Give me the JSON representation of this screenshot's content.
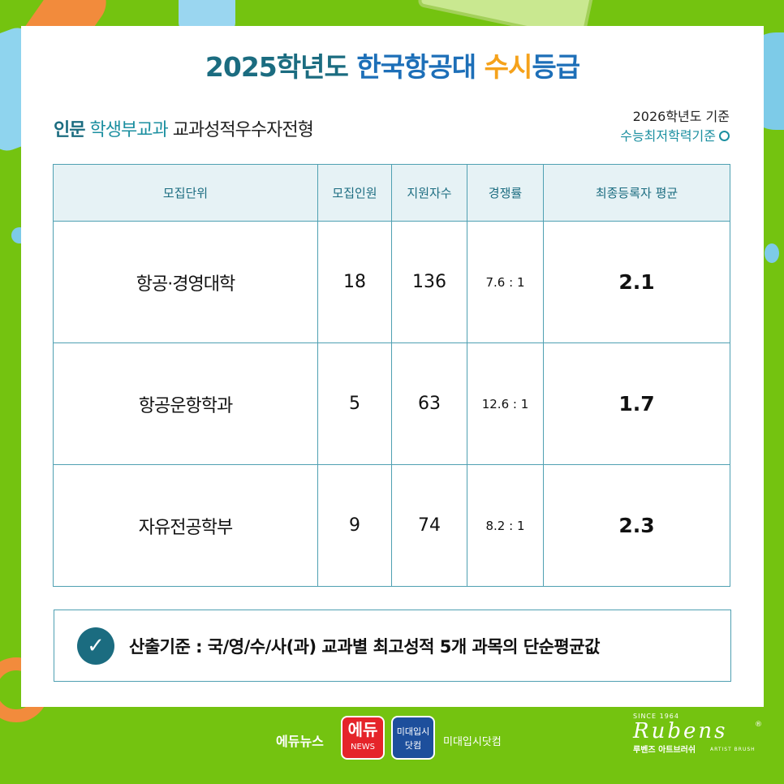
{
  "title": {
    "part1": "2025학년도",
    "part2": "한국항공대",
    "part3": "수시",
    "part4": "등급"
  },
  "subtitle": {
    "w1": "인문",
    "w2": "학생부교과",
    "w3": "교과성적우수자전형"
  },
  "criteria": {
    "line1": "2026학년도 기준",
    "line2": "수능최저학력기준"
  },
  "table": {
    "headers": [
      "모집단위",
      "모집인원",
      "지원자수",
      "경쟁률",
      "최종등록자 평균"
    ],
    "rows": [
      {
        "unit": "항공·경영대학",
        "quota": "18",
        "applicants": "136",
        "ratio": "7.6 : 1",
        "average": "2.1"
      },
      {
        "unit": "항공운항학과",
        "quota": "5",
        "applicants": "63",
        "ratio": "12.6 : 1",
        "average": "1.7"
      },
      {
        "unit": "자유전공학부",
        "quota": "9",
        "applicants": "74",
        "ratio": "8.2 : 1",
        "average": "2.3"
      }
    ]
  },
  "note": {
    "icon": "check-icon",
    "text": "산출기준 : 국/영/수/사(과) 교과별 최고성적 5개 과목의 단순평균값"
  },
  "footer": {
    "edunews": "에듀뉴스",
    "edu_logo_big": "에듀",
    "edu_logo_small": "NEWS",
    "midae_logo_line1": "미대입시",
    "midae_logo_line2": "닷컴",
    "midae": "미대입시닷컴",
    "rubens_since": "SINCE 1964",
    "rubens_script": "Rubens",
    "rubens_reg": "®",
    "rubens_kor": "루벤즈 아트브러쉬",
    "rubens_artist": "ARTIST BRUSH"
  },
  "colors": {
    "background": "#74c310",
    "teal": "#1b6c80",
    "blue": "#1d6fb8",
    "orange": "#f5a21b",
    "header_bg": "#e6f2f5"
  }
}
